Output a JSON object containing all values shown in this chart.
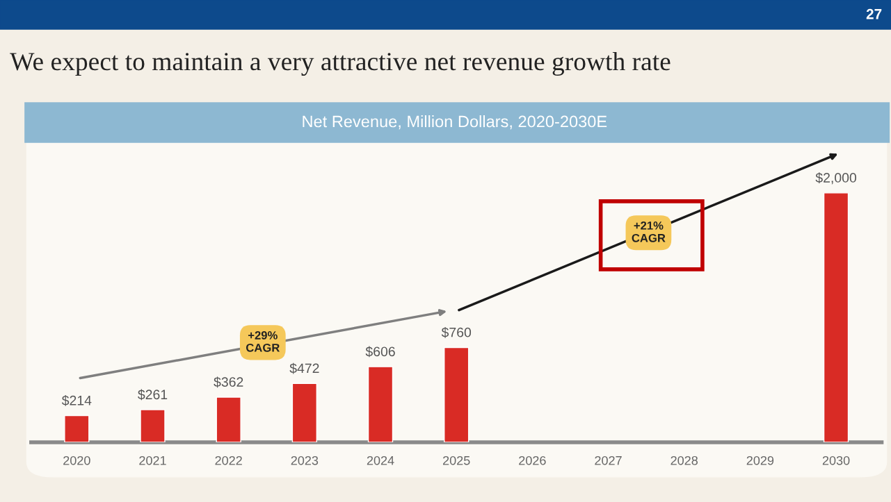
{
  "chart_data": {
    "type": "bar",
    "title": "We expect to maintain a very attractive net revenue growth rate",
    "subtitle": "Net Revenue, Million Dollars, 2020-2030E",
    "categories": [
      "2020",
      "2021",
      "2022",
      "2023",
      "2024",
      "2025",
      "2026",
      "2027",
      "2028",
      "2029",
      "2030"
    ],
    "values": [
      214,
      261,
      362,
      472,
      606,
      760,
      null,
      null,
      null,
      null,
      2000
    ],
    "value_labels": [
      "$214",
      "$261",
      "$362",
      "$472",
      "$606",
      "$760",
      null,
      null,
      null,
      null,
      "$2,000"
    ],
    "color": "#d92b25",
    "annotations": [
      "+29%\nCAGR",
      "+21%\nCAGR",
      "27"
    ],
    "grid": false,
    "legend": false
  }
}
